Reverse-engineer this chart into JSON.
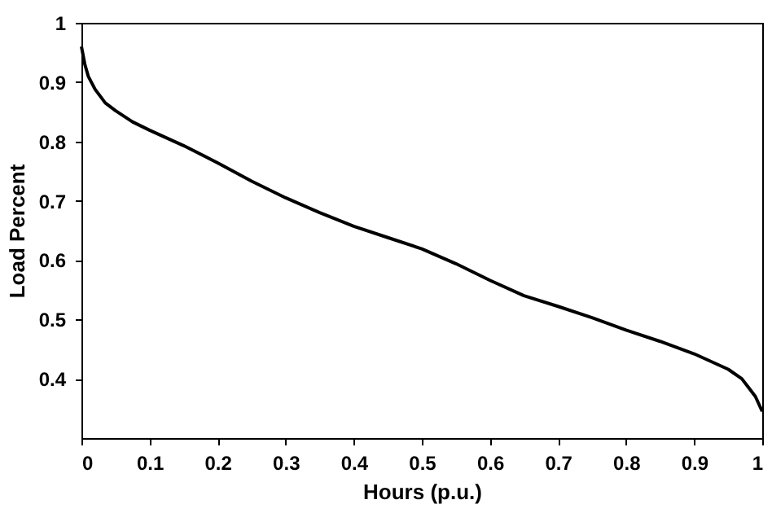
{
  "chart_data": {
    "type": "line",
    "xlabel": "Hours (p.u.)",
    "ylabel": "Load Percent",
    "x": [
      0,
      0.005,
      0.01,
      0.02,
      0.035,
      0.05,
      0.075,
      0.1,
      0.15,
      0.2,
      0.25,
      0.3,
      0.35,
      0.4,
      0.45,
      0.5,
      0.55,
      0.6,
      0.65,
      0.7,
      0.75,
      0.8,
      0.85,
      0.9,
      0.95,
      0.97,
      0.98,
      0.99,
      1.0
    ],
    "series": [
      {
        "color": "#000000",
        "values": [
          0.96,
          0.93,
          0.91,
          0.888,
          0.865,
          0.852,
          0.833,
          0.819,
          0.793,
          0.764,
          0.733,
          0.705,
          0.68,
          0.657,
          0.638,
          0.619,
          0.594,
          0.566,
          0.54,
          0.522,
          0.503,
          0.482,
          0.463,
          0.442,
          0.416,
          0.4,
          0.385,
          0.37,
          0.345
        ]
      }
    ],
    "xlim": [
      0,
      1
    ],
    "xticks": [
      0,
      0.1,
      0.2,
      0.3,
      0.4,
      0.5,
      0.6,
      0.7,
      0.8,
      0.9,
      1
    ],
    "ylim": [
      0.3,
      1
    ],
    "yticks": [
      0.4,
      0.5,
      0.6,
      0.7,
      0.8,
      0.9,
      1
    ],
    "grid": false,
    "marker": "none",
    "line_style": "solid"
  }
}
